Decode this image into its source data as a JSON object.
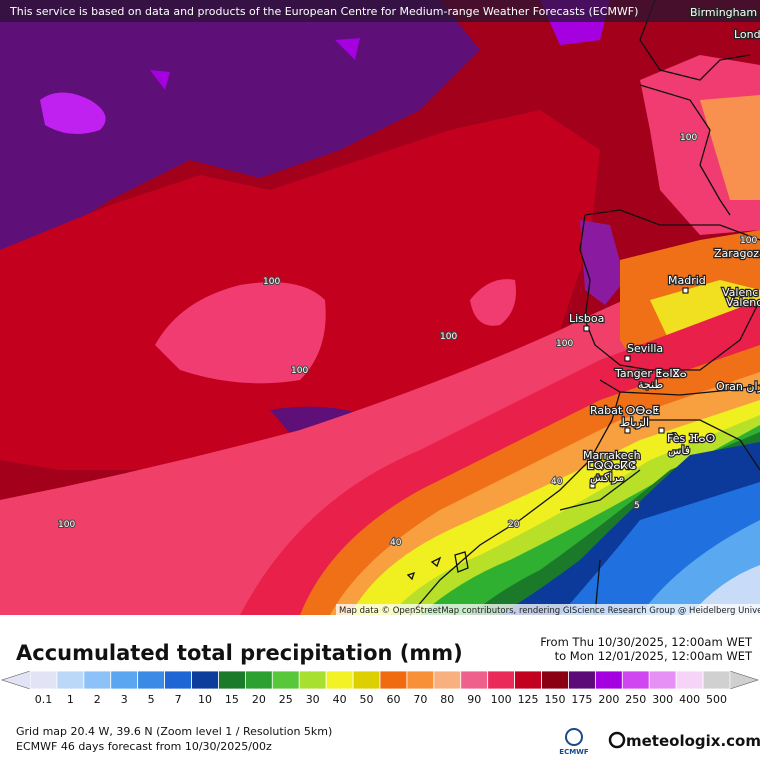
{
  "header": {
    "attribution": "This service is based on data and products of the European Centre for Medium-range Weather Forecasts (ECMWF)"
  },
  "map": {
    "cities": [
      "Birmingham",
      "Lond",
      "Zaragoza",
      "Madrid",
      "Valenc",
      "Valenc",
      "Lisboa",
      "Sevilla",
      "Tanger ⵟⴰⵏⴵⴰ",
      "طنجة",
      "Oran وهران",
      "Rabat ⵔⴱⴰⵟ",
      "الرباط",
      "Fès ⴼⴰⵙ",
      "فاس",
      "Marrakech",
      "ⵎⵕⵕⴰⴽⵛ",
      "مراكش"
    ],
    "contour_labels": [
      "100",
      "100",
      "100",
      "100",
      "100",
      "100",
      "100",
      "40",
      "40",
      "20",
      "5"
    ],
    "credits": "Map data © OpenStreetMap contributors, rendering GIScience Research Group @ Heidelberg University"
  },
  "legend": {
    "title": "Accumulated total precipitation (mm)",
    "period_from": "From Thu 10/30/2025, 12:00am WET",
    "period_to": "to Mon 12/01/2025, 12:00am WET",
    "items": [
      {
        "label": 0.1,
        "color": "#e2e4f6"
      },
      {
        "label": 1,
        "color": "#bcd8f8"
      },
      {
        "label": 2,
        "color": "#8cc2f8"
      },
      {
        "label": 3,
        "color": "#5aa6f0"
      },
      {
        "label": 5,
        "color": "#3a8ae6"
      },
      {
        "label": 7,
        "color": "#1e66d6"
      },
      {
        "label": 10,
        "color": "#0c3c9c"
      },
      {
        "label": 15,
        "color": "#1a7a2a"
      },
      {
        "label": 20,
        "color": "#2ca030"
      },
      {
        "label": 25,
        "color": "#58c83a"
      },
      {
        "label": 30,
        "color": "#a8e030"
      },
      {
        "label": 40,
        "color": "#f2f224"
      },
      {
        "label": 50,
        "color": "#ded000"
      },
      {
        "label": 60,
        "color": "#f06a10"
      },
      {
        "label": 70,
        "color": "#f89038"
      },
      {
        "label": 80,
        "color": "#f8b080"
      },
      {
        "label": 90,
        "color": "#f0608c"
      },
      {
        "label": 100,
        "color": "#ea2a58"
      },
      {
        "label": 125,
        "color": "#c20020"
      },
      {
        "label": 150,
        "color": "#8c0014"
      },
      {
        "label": 175,
        "color": "#5c0a78"
      },
      {
        "label": 200,
        "color": "#a400e0"
      },
      {
        "label": 250,
        "color": "#d046f0"
      },
      {
        "label": 300,
        "color": "#e690f6"
      },
      {
        "label": 400,
        "color": "#f6d4f8"
      },
      {
        "label": 500,
        "color": "#d0d0d0"
      }
    ]
  },
  "footer": {
    "grid": "Grid map 20.4 W, 39.6 N (Zoom level 1 / Resolution 5km)",
    "forecast": "ECMWF 46 days forecast from  10/30/2025/00z",
    "ecmwf_logo": "ECMWF",
    "brand": "meteologix.com"
  }
}
